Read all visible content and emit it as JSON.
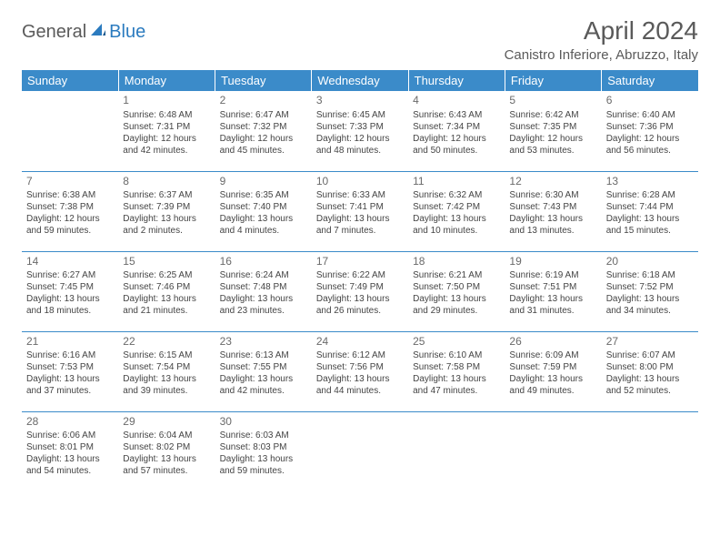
{
  "logo": {
    "part1": "General",
    "part2": "Blue"
  },
  "title": "April 2024",
  "location": "Canistro Inferiore, Abruzzo, Italy",
  "weekday_header_bg": "#3b8bc9",
  "weekday_header_fg": "#ffffff",
  "border_color": "#3b8bc9",
  "weekdays": [
    "Sunday",
    "Monday",
    "Tuesday",
    "Wednesday",
    "Thursday",
    "Friday",
    "Saturday"
  ],
  "weeks": [
    [
      null,
      {
        "n": "1",
        "sr": "Sunrise: 6:48 AM",
        "ss": "Sunset: 7:31 PM",
        "d1": "Daylight: 12 hours",
        "d2": "and 42 minutes."
      },
      {
        "n": "2",
        "sr": "Sunrise: 6:47 AM",
        "ss": "Sunset: 7:32 PM",
        "d1": "Daylight: 12 hours",
        "d2": "and 45 minutes."
      },
      {
        "n": "3",
        "sr": "Sunrise: 6:45 AM",
        "ss": "Sunset: 7:33 PM",
        "d1": "Daylight: 12 hours",
        "d2": "and 48 minutes."
      },
      {
        "n": "4",
        "sr": "Sunrise: 6:43 AM",
        "ss": "Sunset: 7:34 PM",
        "d1": "Daylight: 12 hours",
        "d2": "and 50 minutes."
      },
      {
        "n": "5",
        "sr": "Sunrise: 6:42 AM",
        "ss": "Sunset: 7:35 PM",
        "d1": "Daylight: 12 hours",
        "d2": "and 53 minutes."
      },
      {
        "n": "6",
        "sr": "Sunrise: 6:40 AM",
        "ss": "Sunset: 7:36 PM",
        "d1": "Daylight: 12 hours",
        "d2": "and 56 minutes."
      }
    ],
    [
      {
        "n": "7",
        "sr": "Sunrise: 6:38 AM",
        "ss": "Sunset: 7:38 PM",
        "d1": "Daylight: 12 hours",
        "d2": "and 59 minutes."
      },
      {
        "n": "8",
        "sr": "Sunrise: 6:37 AM",
        "ss": "Sunset: 7:39 PM",
        "d1": "Daylight: 13 hours",
        "d2": "and 2 minutes."
      },
      {
        "n": "9",
        "sr": "Sunrise: 6:35 AM",
        "ss": "Sunset: 7:40 PM",
        "d1": "Daylight: 13 hours",
        "d2": "and 4 minutes."
      },
      {
        "n": "10",
        "sr": "Sunrise: 6:33 AM",
        "ss": "Sunset: 7:41 PM",
        "d1": "Daylight: 13 hours",
        "d2": "and 7 minutes."
      },
      {
        "n": "11",
        "sr": "Sunrise: 6:32 AM",
        "ss": "Sunset: 7:42 PM",
        "d1": "Daylight: 13 hours",
        "d2": "and 10 minutes."
      },
      {
        "n": "12",
        "sr": "Sunrise: 6:30 AM",
        "ss": "Sunset: 7:43 PM",
        "d1": "Daylight: 13 hours",
        "d2": "and 13 minutes."
      },
      {
        "n": "13",
        "sr": "Sunrise: 6:28 AM",
        "ss": "Sunset: 7:44 PM",
        "d1": "Daylight: 13 hours",
        "d2": "and 15 minutes."
      }
    ],
    [
      {
        "n": "14",
        "sr": "Sunrise: 6:27 AM",
        "ss": "Sunset: 7:45 PM",
        "d1": "Daylight: 13 hours",
        "d2": "and 18 minutes."
      },
      {
        "n": "15",
        "sr": "Sunrise: 6:25 AM",
        "ss": "Sunset: 7:46 PM",
        "d1": "Daylight: 13 hours",
        "d2": "and 21 minutes."
      },
      {
        "n": "16",
        "sr": "Sunrise: 6:24 AM",
        "ss": "Sunset: 7:48 PM",
        "d1": "Daylight: 13 hours",
        "d2": "and 23 minutes."
      },
      {
        "n": "17",
        "sr": "Sunrise: 6:22 AM",
        "ss": "Sunset: 7:49 PM",
        "d1": "Daylight: 13 hours",
        "d2": "and 26 minutes."
      },
      {
        "n": "18",
        "sr": "Sunrise: 6:21 AM",
        "ss": "Sunset: 7:50 PM",
        "d1": "Daylight: 13 hours",
        "d2": "and 29 minutes."
      },
      {
        "n": "19",
        "sr": "Sunrise: 6:19 AM",
        "ss": "Sunset: 7:51 PM",
        "d1": "Daylight: 13 hours",
        "d2": "and 31 minutes."
      },
      {
        "n": "20",
        "sr": "Sunrise: 6:18 AM",
        "ss": "Sunset: 7:52 PM",
        "d1": "Daylight: 13 hours",
        "d2": "and 34 minutes."
      }
    ],
    [
      {
        "n": "21",
        "sr": "Sunrise: 6:16 AM",
        "ss": "Sunset: 7:53 PM",
        "d1": "Daylight: 13 hours",
        "d2": "and 37 minutes."
      },
      {
        "n": "22",
        "sr": "Sunrise: 6:15 AM",
        "ss": "Sunset: 7:54 PM",
        "d1": "Daylight: 13 hours",
        "d2": "and 39 minutes."
      },
      {
        "n": "23",
        "sr": "Sunrise: 6:13 AM",
        "ss": "Sunset: 7:55 PM",
        "d1": "Daylight: 13 hours",
        "d2": "and 42 minutes."
      },
      {
        "n": "24",
        "sr": "Sunrise: 6:12 AM",
        "ss": "Sunset: 7:56 PM",
        "d1": "Daylight: 13 hours",
        "d2": "and 44 minutes."
      },
      {
        "n": "25",
        "sr": "Sunrise: 6:10 AM",
        "ss": "Sunset: 7:58 PM",
        "d1": "Daylight: 13 hours",
        "d2": "and 47 minutes."
      },
      {
        "n": "26",
        "sr": "Sunrise: 6:09 AM",
        "ss": "Sunset: 7:59 PM",
        "d1": "Daylight: 13 hours",
        "d2": "and 49 minutes."
      },
      {
        "n": "27",
        "sr": "Sunrise: 6:07 AM",
        "ss": "Sunset: 8:00 PM",
        "d1": "Daylight: 13 hours",
        "d2": "and 52 minutes."
      }
    ],
    [
      {
        "n": "28",
        "sr": "Sunrise: 6:06 AM",
        "ss": "Sunset: 8:01 PM",
        "d1": "Daylight: 13 hours",
        "d2": "and 54 minutes."
      },
      {
        "n": "29",
        "sr": "Sunrise: 6:04 AM",
        "ss": "Sunset: 8:02 PM",
        "d1": "Daylight: 13 hours",
        "d2": "and 57 minutes."
      },
      {
        "n": "30",
        "sr": "Sunrise: 6:03 AM",
        "ss": "Sunset: 8:03 PM",
        "d1": "Daylight: 13 hours",
        "d2": "and 59 minutes."
      },
      null,
      null,
      null,
      null
    ]
  ]
}
